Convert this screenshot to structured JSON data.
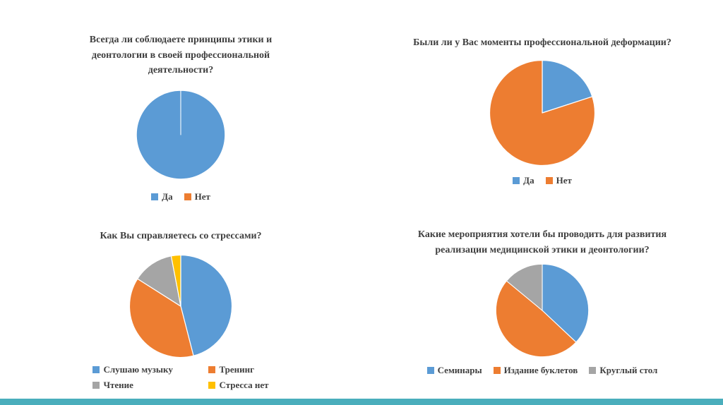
{
  "slide": {
    "background": "#ffffff",
    "accent_bar_color": "#4aaebc"
  },
  "chart_data": [
    {
      "type": "pie",
      "title": "Всегда ли соблюдаете принципы этики и деонтологии в своей профессиональной деятельности?",
      "labels": [
        "Да",
        "Нет"
      ],
      "values": [
        100,
        0
      ],
      "colors": [
        "#5b9bd5",
        "#ed7d31"
      ],
      "legend_position": "bottom"
    },
    {
      "type": "pie",
      "title": "Были ли у Вас моменты профессиональной деформации?",
      "labels": [
        "Да",
        "Нет"
      ],
      "values": [
        20,
        80
      ],
      "colors": [
        "#5b9bd5",
        "#ed7d31"
      ],
      "legend_position": "bottom"
    },
    {
      "type": "pie",
      "title": "Как Вы справляетесь со стрессами?",
      "labels": [
        "Слушаю музыку",
        "Тренинг",
        "Чтение",
        "Стресса нет"
      ],
      "values": [
        46,
        38,
        13,
        3
      ],
      "colors": [
        "#5b9bd5",
        "#ed7d31",
        "#a5a5a5",
        "#ffc000"
      ],
      "legend_position": "bottom"
    },
    {
      "type": "pie",
      "title": "Какие мероприятия хотели бы проводить для развития реализации медицинской этики и деонтологии?",
      "labels": [
        "Семинары",
        "Издание буклетов",
        "Круглый стол"
      ],
      "values": [
        37,
        49,
        14
      ],
      "colors": [
        "#5b9bd5",
        "#ed7d31",
        "#a5a5a5"
      ],
      "legend_position": "bottom"
    }
  ]
}
